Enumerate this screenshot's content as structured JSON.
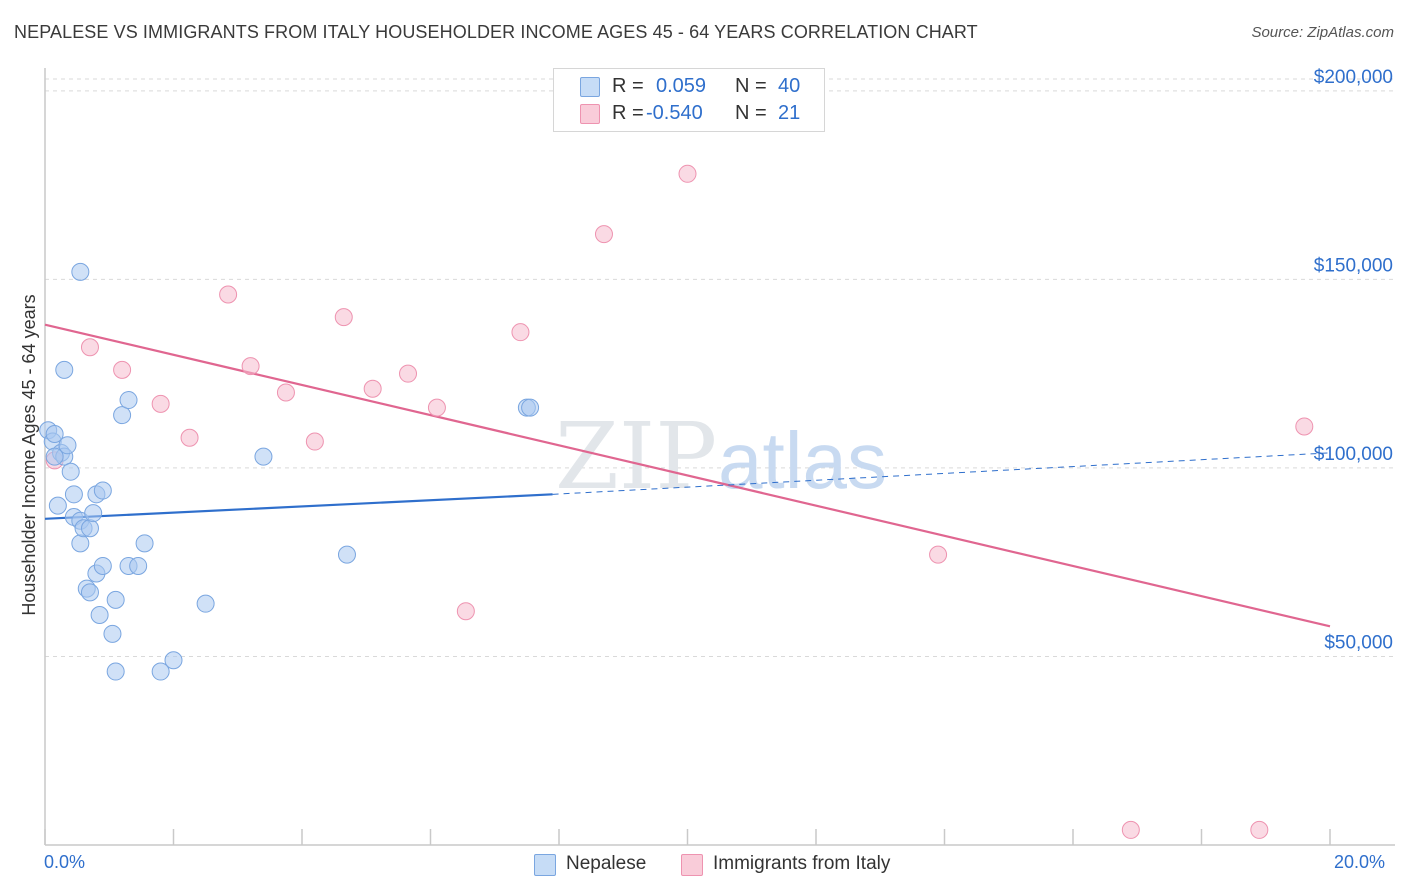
{
  "header": {
    "title": "NEPALESE VS IMMIGRANTS FROM ITALY HOUSEHOLDER INCOME AGES 45 - 64 YEARS CORRELATION CHART",
    "source": "Source: ZipAtlas.com"
  },
  "watermark": {
    "part1": "ZIP",
    "part2": "atlas"
  },
  "legend_top": {
    "rows": [
      {
        "r_label": "R =",
        "r_value": "0.059",
        "n_label": "N =",
        "n_value": "40"
      },
      {
        "r_label": "R =",
        "r_value": "-0.540",
        "n_label": "N =",
        "n_value": "21"
      }
    ]
  },
  "legend_bottom": {
    "items": [
      "Nepalese",
      "Immigrants from Italy"
    ]
  },
  "colors": {
    "nepalese_fill": "#aac8f0",
    "nepalese_stroke": "#7aa6e0",
    "nepalese_line": "#2f6fcc",
    "italy_fill": "#f6bccd",
    "italy_stroke": "#ee93b0",
    "italy_line": "#e06690",
    "axis_text": "#2f6fcc",
    "grid": "#d9d9d9"
  },
  "chart_data": {
    "type": "scatter",
    "title": "NEPALESE VS IMMIGRANTS FROM ITALY HOUSEHOLDER INCOME AGES 45 - 64 YEARS CORRELATION CHART",
    "xlabel": "",
    "ylabel": "Householder Income Ages 45 - 64 years",
    "xlim": [
      0,
      20
    ],
    "ylim": [
      0,
      205000
    ],
    "x_tick_labels": [
      "0.0%",
      "20.0%"
    ],
    "y_ticks": [
      50000,
      100000,
      150000,
      200000
    ],
    "y_tick_labels": [
      "$50,000",
      "$100,000",
      "$150,000",
      "$200,000"
    ],
    "grid": true,
    "legend_position": "top-center",
    "series": [
      {
        "name": "Nepalese",
        "R": 0.059,
        "N": 40,
        "points": [
          [
            0.05,
            110000
          ],
          [
            0.12,
            107000
          ],
          [
            0.15,
            109000
          ],
          [
            0.25,
            104000
          ],
          [
            0.3,
            103000
          ],
          [
            0.35,
            106000
          ],
          [
            0.4,
            99000
          ],
          [
            0.2,
            90000
          ],
          [
            0.45,
            93000
          ],
          [
            0.45,
            87000
          ],
          [
            0.55,
            86000
          ],
          [
            0.55,
            80000
          ],
          [
            0.6,
            84000
          ],
          [
            0.7,
            84000
          ],
          [
            0.75,
            88000
          ],
          [
            0.8,
            93000
          ],
          [
            0.9,
            94000
          ],
          [
            0.55,
            152000
          ],
          [
            0.3,
            126000
          ],
          [
            1.2,
            114000
          ],
          [
            1.3,
            118000
          ],
          [
            0.65,
            68000
          ],
          [
            0.7,
            67000
          ],
          [
            0.8,
            72000
          ],
          [
            0.9,
            74000
          ],
          [
            0.85,
            61000
          ],
          [
            1.1,
            65000
          ],
          [
            1.3,
            74000
          ],
          [
            1.45,
            74000
          ],
          [
            1.55,
            80000
          ],
          [
            1.05,
            56000
          ],
          [
            1.1,
            46000
          ],
          [
            1.8,
            46000
          ],
          [
            2.0,
            49000
          ],
          [
            2.5,
            64000
          ],
          [
            3.4,
            103000
          ],
          [
            4.7,
            77000
          ],
          [
            7.5,
            116000
          ],
          [
            7.55,
            116000
          ],
          [
            0.15,
            103000
          ]
        ],
        "trend": {
          "x": [
            0,
            7.9
          ],
          "y": [
            86500,
            93000
          ]
        },
        "trend_extension": {
          "x": [
            7.9,
            20
          ],
          "y": [
            93000,
            104000
          ]
        }
      },
      {
        "name": "Immigrants from Italy",
        "R": -0.54,
        "N": 21,
        "points": [
          [
            0.15,
            102000
          ],
          [
            0.7,
            132000
          ],
          [
            1.2,
            126000
          ],
          [
            1.8,
            117000
          ],
          [
            2.25,
            108000
          ],
          [
            2.85,
            146000
          ],
          [
            3.2,
            127000
          ],
          [
            3.75,
            120000
          ],
          [
            4.2,
            107000
          ],
          [
            4.65,
            140000
          ],
          [
            5.1,
            121000
          ],
          [
            5.65,
            125000
          ],
          [
            6.1,
            116000
          ],
          [
            6.55,
            62000
          ],
          [
            7.4,
            136000
          ],
          [
            8.7,
            162000
          ],
          [
            10.0,
            178000
          ],
          [
            13.9,
            77000
          ],
          [
            16.9,
            4000
          ],
          [
            18.9,
            4000
          ],
          [
            19.6,
            111000
          ]
        ],
        "trend": {
          "x": [
            0,
            20
          ],
          "y": [
            138000,
            58000
          ]
        }
      }
    ]
  }
}
